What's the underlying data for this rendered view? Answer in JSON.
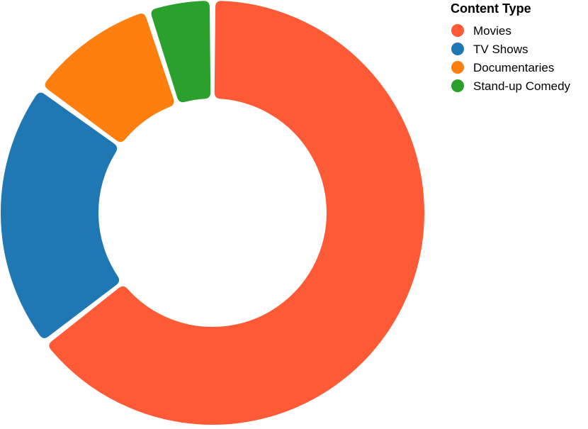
{
  "chart_data": {
    "type": "pie",
    "donut": true,
    "categories": [
      "Movies",
      "TV Shows",
      "Documentaries",
      "Stand-up Comedy"
    ],
    "values": [
      64.5,
      20.5,
      10,
      5
    ],
    "colors": [
      "#ff5a36",
      "#1f77b4",
      "#ff7f0e",
      "#2ca02c"
    ],
    "legend": {
      "title": "Content Type",
      "placement": "top-right"
    }
  }
}
